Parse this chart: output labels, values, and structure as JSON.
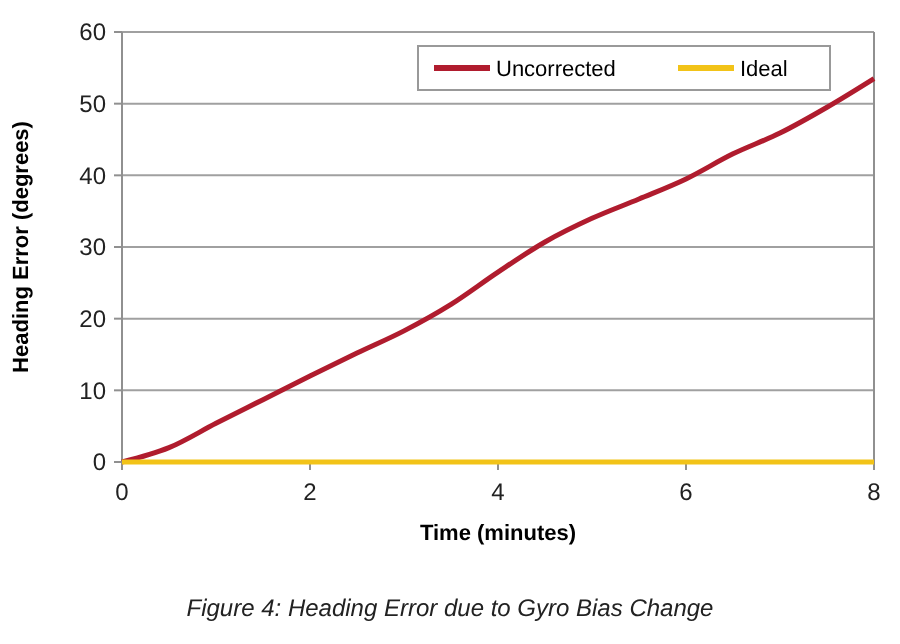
{
  "chart_data": {
    "type": "line",
    "xlabel": "Time (minutes)",
    "ylabel": "Heading Error (degrees)",
    "annotations": [
      "Figure 4: Heading Error due to Gyro Bias Change"
    ],
    "x": [
      0,
      0.5,
      1,
      1.5,
      2,
      2.5,
      3,
      3.5,
      4,
      4.5,
      5,
      5.5,
      6,
      6.5,
      7,
      7.5,
      8
    ],
    "series": [
      {
        "name": "Uncorrected",
        "color": "#b01c2e",
        "values": [
          0,
          2,
          5.4,
          8.7,
          12,
          15.2,
          18.3,
          22,
          26.5,
          30.7,
          34,
          36.7,
          39.5,
          43,
          45.9,
          49.5,
          53.5
        ]
      },
      {
        "name": "Ideal",
        "color": "#f2c318",
        "values": [
          0,
          0,
          0,
          0,
          0,
          0,
          0,
          0,
          0,
          0,
          0,
          0,
          0,
          0,
          0,
          0,
          0
        ]
      }
    ],
    "xlim": [
      0,
      8
    ],
    "xticks": [
      0,
      2,
      4,
      6,
      8
    ],
    "ylim": [
      0,
      60
    ],
    "yticks": [
      0,
      10,
      20,
      30,
      40,
      50,
      60
    ],
    "grid": "y",
    "legend": "top right",
    "marker": "none",
    "line_style": "solid"
  }
}
